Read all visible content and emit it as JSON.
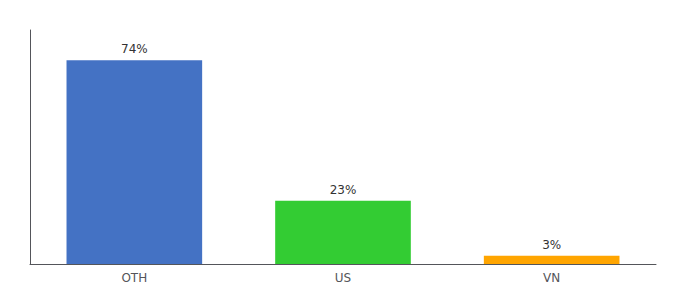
{
  "chart_data": {
    "type": "bar",
    "categories": [
      "OTH",
      "US",
      "VN"
    ],
    "values": [
      74,
      23,
      3
    ],
    "value_labels": [
      "74%",
      "23%",
      "3%"
    ],
    "colors": [
      "#4472C4",
      "#33CC33",
      "#FFA500"
    ],
    "ylim": [
      0,
      85
    ],
    "grid": false,
    "data_labels": true,
    "tick_labels": "x"
  }
}
